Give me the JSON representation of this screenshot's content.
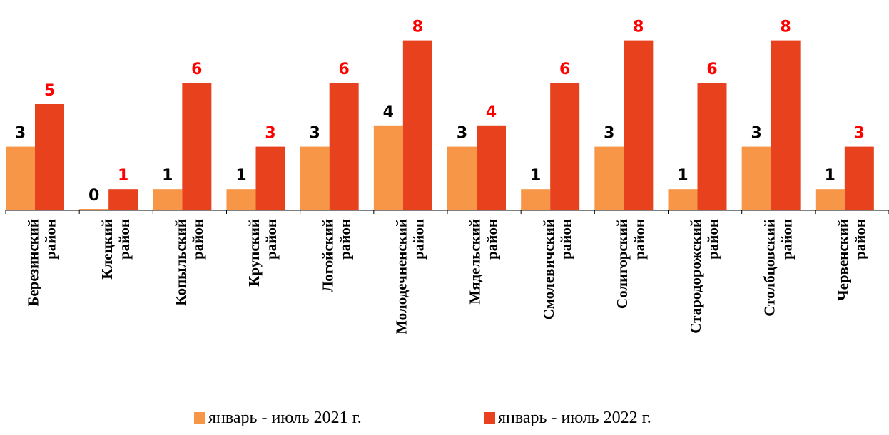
{
  "chart_data": {
    "type": "bar",
    "categories": [
      [
        "Березинский",
        "район"
      ],
      [
        "Клецкий",
        "район"
      ],
      [
        "Копыльский",
        "район"
      ],
      [
        "Крупский",
        "район"
      ],
      [
        "Логойский",
        "район"
      ],
      [
        "Молодечненский",
        "район"
      ],
      [
        "Мядельский",
        "район"
      ],
      [
        "Смолевичский",
        "район"
      ],
      [
        "Солигорский",
        "район"
      ],
      [
        "Стародорожский",
        "район"
      ],
      [
        "Столбцовский",
        "район"
      ],
      [
        "Червенский",
        "район"
      ]
    ],
    "series": [
      {
        "name": "январь - июль 2021 г.",
        "color": "#F79646",
        "label_color": "#000000",
        "values": [
          3,
          0,
          1,
          1,
          3,
          4,
          3,
          1,
          3,
          1,
          3,
          1
        ]
      },
      {
        "name": "январь - июль 2022 г.",
        "color": "#E8411E",
        "label_color": "#FF0000",
        "values": [
          5,
          1,
          6,
          3,
          6,
          8,
          4,
          6,
          8,
          6,
          8,
          3
        ]
      }
    ],
    "ylim": [
      0,
      8
    ],
    "grid": false,
    "legend_position": "bottom"
  }
}
